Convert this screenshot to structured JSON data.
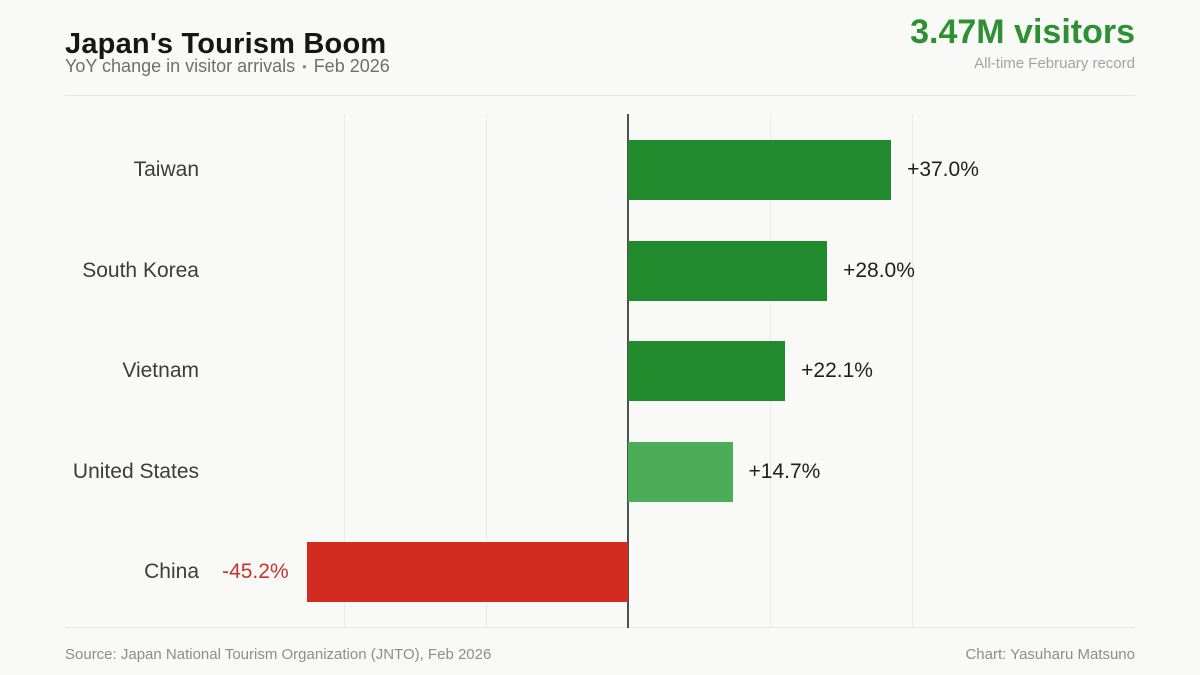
{
  "header": {
    "title": "Japan's Tourism Boom",
    "subtitle": "YoY change in visitor arrivals",
    "separator": "•",
    "period": "Feb 2026",
    "kpi_value": "3.47M visitors",
    "kpi_caption": "All-time February record"
  },
  "footer": {
    "source": "Source: Japan National Tourism Organization (JNTO), Feb 2026",
    "credit": "Chart: Yasuharu Matsuno"
  },
  "colors": {
    "green_dark": "#218a2c",
    "green_light": "#4bad55",
    "red": "#d32b20",
    "kpi_green": "#2d9132",
    "negative_label": "#c7342b",
    "axis": "#4f4f4f",
    "grid": "#e9e9e6"
  },
  "chart_data": {
    "type": "bar",
    "orientation": "horizontal",
    "title": "Japan's Tourism Boom",
    "subtitle": "YoY change in visitor arrivals • Feb 2026",
    "categories": [
      "Taiwan",
      "South Korea",
      "Vietnam",
      "United States",
      "China"
    ],
    "values": [
      37.0,
      28.0,
      22.1,
      14.7,
      -45.2
    ],
    "value_labels": [
      "+37.0%",
      "+28.0%",
      "+22.1%",
      "+14.7%",
      "-45.2%"
    ],
    "bar_colors": [
      "#218a2c",
      "#218a2c",
      "#218a2c",
      "#4bad55",
      "#d32b20"
    ],
    "xlim": [
      -58,
      71
    ],
    "gridline_values": [
      -40,
      -20,
      20,
      40
    ],
    "zero_line": 0,
    "grid": "vertical",
    "legend": "none"
  }
}
